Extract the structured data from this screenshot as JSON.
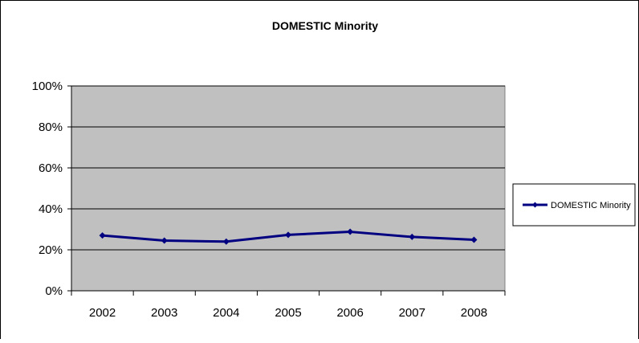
{
  "chart_data": {
    "type": "line",
    "title": "DOMESTIC Minority",
    "xlabel": "",
    "ylabel": "",
    "categories": [
      "2002",
      "2003",
      "2004",
      "2005",
      "2006",
      "2007",
      "2008"
    ],
    "series": [
      {
        "name": "DOMESTIC Minority",
        "values": [
          0.27,
          0.245,
          0.24,
          0.273,
          0.288,
          0.263,
          0.249
        ],
        "color": "#000080"
      }
    ],
    "ylim": [
      0,
      1
    ],
    "yticks": [
      "0%",
      "20%",
      "40%",
      "60%",
      "80%",
      "100%"
    ],
    "grid": "horizontal",
    "legend": "right",
    "plot_background": "#c0c0c0"
  }
}
